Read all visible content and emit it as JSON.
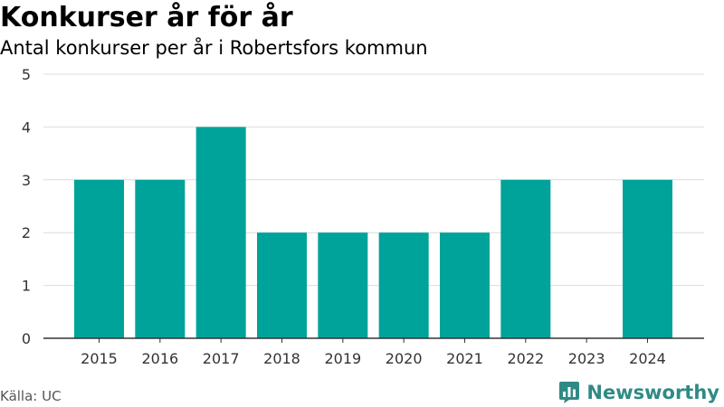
{
  "header": {
    "title": "Konkurser år för år",
    "subtitle": "Antal konkurser per år i Robertsfors kommun"
  },
  "footer": {
    "source": "Källa: UC",
    "brand": "Newsworthy",
    "brand_color": "#2f8a85"
  },
  "colors": {
    "bar": "#00a39a",
    "grid": "#dcdcdc",
    "axis": "#333333",
    "tick_text": "#333333"
  },
  "icons": {
    "brand_logo": "bar-chart-speech-bubble-icon"
  },
  "chart_data": {
    "type": "bar",
    "categories": [
      "2015",
      "2016",
      "2017",
      "2018",
      "2019",
      "2020",
      "2021",
      "2022",
      "2023",
      "2024"
    ],
    "values": [
      3,
      3,
      4,
      2,
      2,
      2,
      2,
      3,
      0,
      3
    ],
    "title": "Konkurser år för år",
    "subtitle": "Antal konkurser per år i Robertsfors kommun",
    "xlabel": "",
    "ylabel": "",
    "ylim": [
      0,
      5
    ],
    "yticks": [
      0,
      1,
      2,
      3,
      4,
      5
    ],
    "grid": true
  }
}
